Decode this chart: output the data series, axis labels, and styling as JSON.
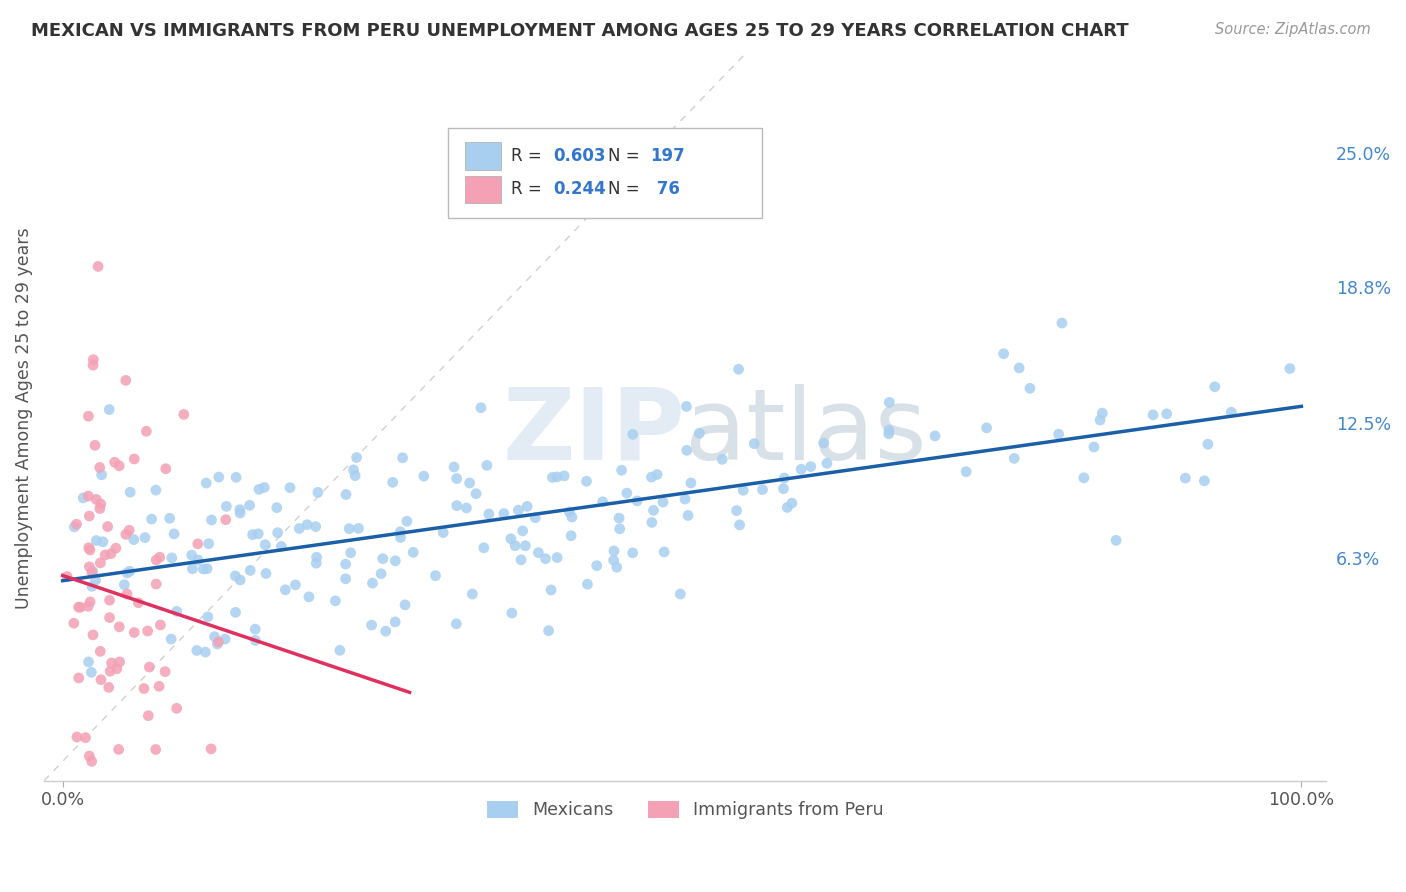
{
  "title": "MEXICAN VS IMMIGRANTS FROM PERU UNEMPLOYMENT AMONG AGES 25 TO 29 YEARS CORRELATION CHART",
  "source_text": "Source: ZipAtlas.com",
  "ylabel": "Unemployment Among Ages 25 to 29 years",
  "yticks": [
    0.063,
    0.125,
    0.188,
    0.25
  ],
  "ytick_labels": [
    "6.3%",
    "12.5%",
    "18.8%",
    "25.0%"
  ],
  "legend_label1": "Mexicans",
  "legend_label2": "Immigrants from Peru",
  "blue_color": "#A8CFF0",
  "pink_color": "#F4A0B5",
  "blue_line_color": "#1A5FA8",
  "pink_line_color": "#E03060",
  "diag_color": "#CCCCCC",
  "title_color": "#333333",
  "background_color": "#FFFFFF",
  "grid_color": "#BBBBBB",
  "ytick_color": "#4488CC",
  "xtick_color": "#555555"
}
